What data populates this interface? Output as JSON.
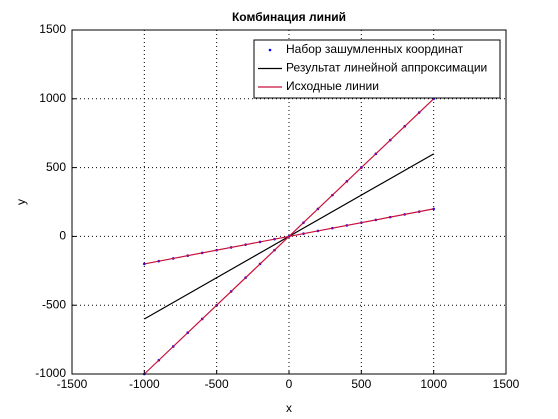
{
  "chart_data": {
    "type": "line",
    "title": "Комбинация линий",
    "xlabel": "x",
    "ylabel": "y",
    "xlim": [
      -1500,
      1500
    ],
    "ylim": [
      -1000,
      1500
    ],
    "xticks": [
      -1500,
      -1000,
      -500,
      0,
      500,
      1000,
      1500
    ],
    "yticks": [
      -1000,
      -500,
      0,
      500,
      1000,
      1500
    ],
    "grid": true,
    "legend": "upper right",
    "series": [
      {
        "name": "Набор зашумленных координат",
        "color": "#0000ff",
        "mode": "markers",
        "x": [
          -1000,
          -900,
          -800,
          -700,
          -600,
          -500,
          -400,
          -300,
          -200,
          -100,
          0,
          100,
          200,
          300,
          400,
          500,
          600,
          700,
          800,
          900,
          1000,
          -1000,
          -900,
          -800,
          -700,
          -600,
          -500,
          -400,
          -300,
          -200,
          -100,
          0,
          100,
          200,
          300,
          400,
          500,
          600,
          700,
          800,
          900,
          1000
        ],
        "values": [
          -1000,
          -900,
          -800,
          -700,
          -600,
          -500,
          -400,
          -300,
          -200,
          -100,
          0,
          100,
          200,
          300,
          400,
          500,
          600,
          700,
          800,
          900,
          1000,
          -200,
          -180,
          -160,
          -140,
          -120,
          -100,
          -80,
          -60,
          -40,
          -20,
          0,
          20,
          40,
          60,
          80,
          100,
          120,
          140,
          160,
          180,
          200
        ]
      },
      {
        "name": "Результат линейной аппроксимации",
        "color": "#000000",
        "mode": "line",
        "x": [
          -1000,
          1000
        ],
        "values": [
          -600,
          600
        ]
      },
      {
        "name": "Исходные линии",
        "color": "#c8103c",
        "mode": "line",
        "x": [
          -1000,
          1000,
          1000,
          -1000,
          1000
        ],
        "values": [
          -1000,
          1000,
          null,
          -200,
          200
        ]
      }
    ]
  }
}
